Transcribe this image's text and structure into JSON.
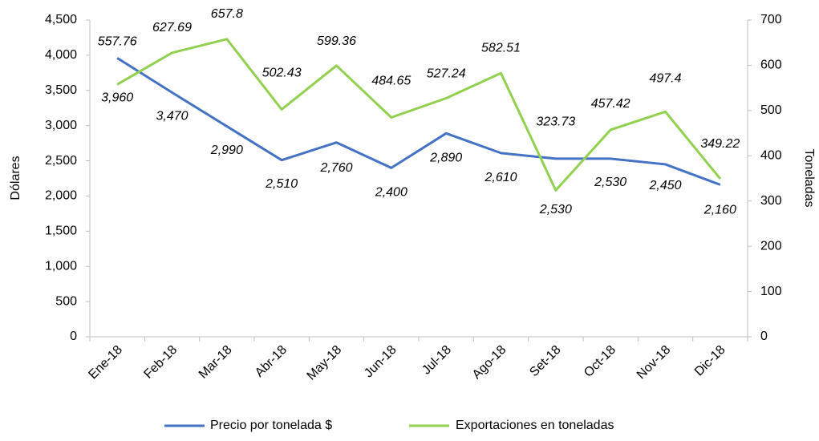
{
  "chart_data": {
    "type": "line",
    "categories": [
      "Ene-18",
      "Feb-18",
      "Mar-18",
      "Abr-18",
      "May-18",
      "Jun-18",
      "Jul-18",
      "Ago-18",
      "Set-18",
      "Oct-18",
      "Nov-18",
      "Dic-18"
    ],
    "series": [
      {
        "name": "Precio por tonelada $",
        "color": "#4472c4",
        "values": [
          3960,
          3470,
          2990,
          2510,
          2760,
          2400,
          2890,
          2610,
          2530,
          2530,
          2450,
          2160
        ],
        "value_labels": [
          "3,960",
          "3,470",
          "2,990",
          "2,510",
          "2,760",
          "2,400",
          "2,890",
          "2,610",
          "2,530",
          "2,530",
          "2,450",
          "2,160"
        ]
      },
      {
        "name": "Exportaciones en toneladas",
        "color": "#92d050",
        "axis": "y2",
        "values": [
          557.76,
          627.69,
          657.8,
          502.43,
          599.36,
          484.65,
          527.24,
          582.51,
          323.73,
          457.42,
          497.4,
          349.22
        ]
      }
    ],
    "ylabel": "Dólares",
    "y2label": "Toneladas",
    "ylim": [
      0,
      4500
    ],
    "yticks": [
      0,
      {
        "value": 500,
        "label": "500"
      },
      {
        "value": 1000,
        "label": "1,000"
      },
      {
        "value": 1500,
        "label": "1,500"
      },
      {
        "value": 2000,
        "label": "2,000"
      },
      {
        "value": 2500,
        "label": "2,500"
      },
      {
        "value": 3000,
        "label": "3,000"
      },
      {
        "value": 3500,
        "label": "3,500"
      },
      {
        "value": 4000,
        "label": "4,000"
      },
      {
        "value": 4500,
        "label": "4,500"
      }
    ],
    "y2lim": [
      0,
      700
    ],
    "y2ticks": [
      0,
      100,
      200,
      300,
      400,
      500,
      600,
      700
    ],
    "legend": "bottom",
    "grid": false
  }
}
